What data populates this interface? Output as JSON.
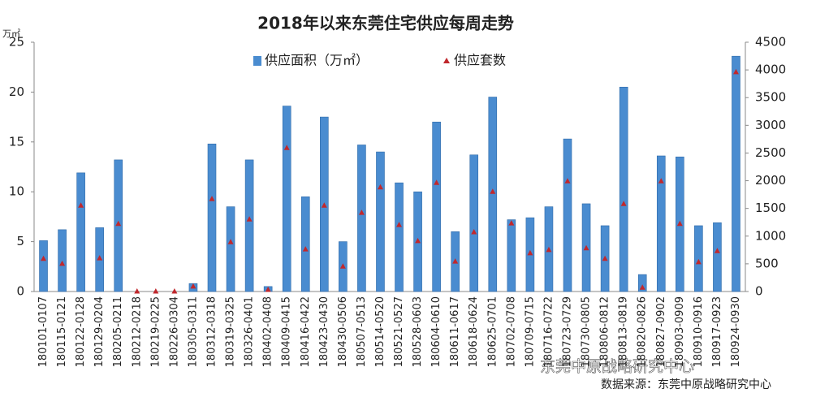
{
  "chart_data": {
    "type": "bar-line",
    "title": "2018年以来东莞住宅供应每周走势",
    "y_label": "万㎡",
    "source": "数据来源：东莞中原战略研究中心",
    "watermark": "东莞中原战略研究中心",
    "legend": "top",
    "categories": [
      "180101-0107",
      "180115-0121",
      "180122-0128",
      "180129-0204",
      "180205-0211",
      "180212-0218",
      "180219-0225",
      "180226-0304",
      "180305-0311",
      "180312-0318",
      "180319-0325",
      "180326-0401",
      "180402-0408",
      "180409-0415",
      "180416-0422",
      "180423-0430",
      "180430-0506",
      "180507-0513",
      "180514-0520",
      "180521-0527",
      "180528-0603",
      "180604-0610",
      "180611-0617",
      "180618-0624",
      "180625-0701",
      "180702-0708",
      "180709-0715",
      "180716-0722",
      "180723-0729",
      "180730-0805",
      "180806-0812",
      "180813-0819",
      "180820-0826",
      "180827-0902",
      "180903-0909",
      "180910-0916",
      "180917-0923",
      "180924-0930"
    ],
    "series": [
      {
        "name": "供应面积（万㎡）",
        "color": "#4a8cd0",
        "marker": "bar",
        "values": [
          5.1,
          6.2,
          11.9,
          6.4,
          13.2,
          0,
          0,
          0,
          0.8,
          14.8,
          8.5,
          13.2,
          0.5,
          18.6,
          9.5,
          17.5,
          5.0,
          14.7,
          14.0,
          10.9,
          10.0,
          17.0,
          6.0,
          13.7,
          19.5,
          7.2,
          7.4,
          8.5,
          15.3,
          8.8,
          6.6,
          20.5,
          1.7,
          13.6,
          13.5,
          6.6,
          6.9,
          23.6
        ]
      },
      {
        "name": "供应套数",
        "color": "#c0282d",
        "marker": "triangle",
        "axis": "y2",
        "values": [
          590,
          500,
          1550,
          600,
          1220,
          0,
          0,
          0,
          90,
          1670,
          890,
          1300,
          30,
          2590,
          760,
          1550,
          450,
          1420,
          1880,
          1200,
          910,
          1960,
          540,
          1070,
          1800,
          1230,
          690,
          750,
          1990,
          780,
          590,
          1580,
          70,
          1990,
          1220,
          530,
          730,
          3960
        ]
      }
    ],
    "ylim": [
      0,
      25
    ],
    "yticks": [
      0,
      5,
      10,
      15,
      20,
      25
    ],
    "y2lim": [
      0,
      4500
    ],
    "y2ticks": [
      0,
      500,
      1000,
      1500,
      2000,
      2500,
      3000,
      3500,
      4000,
      4500
    ]
  }
}
